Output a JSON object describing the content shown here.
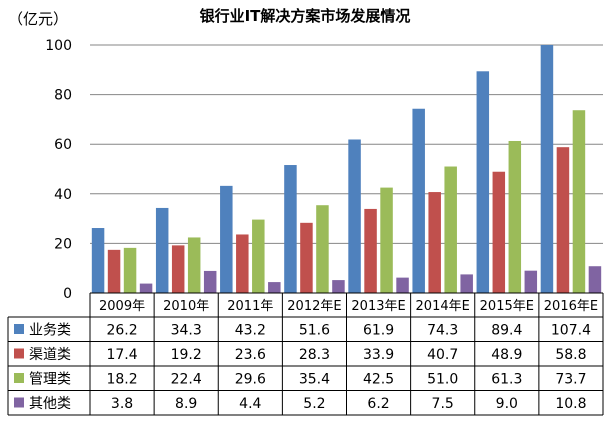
{
  "chart_data": {
    "type": "bar",
    "title": "银行业IT解决方案市场发展情况",
    "unit_label": "（亿元）",
    "categories": [
      "2009年",
      "2010年",
      "2011年",
      "2012年E",
      "2013年E",
      "2014年E",
      "2015年E",
      "2016年E"
    ],
    "ylim": [
      0,
      100
    ],
    "yticks": [
      0,
      20,
      40,
      60,
      80,
      100
    ],
    "grid": true,
    "legend_placement": "data-table-left",
    "series": [
      {
        "name": "业务类",
        "color": "#4F81BD",
        "values": [
          26.2,
          34.3,
          43.2,
          51.6,
          61.9,
          74.3,
          89.4,
          107.4
        ],
        "labels": [
          "26.2",
          "34.3",
          "43.2",
          "51.6",
          "61.9",
          "74.3",
          "89.4",
          "107.4"
        ]
      },
      {
        "name": "渠道类",
        "color": "#C0504D",
        "values": [
          17.4,
          19.2,
          23.6,
          28.3,
          33.9,
          40.7,
          48.9,
          58.8
        ],
        "labels": [
          "17.4",
          "19.2",
          "23.6",
          "28.3",
          "33.9",
          "40.7",
          "48.9",
          "58.8"
        ]
      },
      {
        "name": "管理类",
        "color": "#9BBB59",
        "values": [
          18.2,
          22.4,
          29.6,
          35.4,
          42.5,
          51.0,
          61.3,
          73.7
        ],
        "labels": [
          "18.2",
          "22.4",
          "29.6",
          "35.4",
          "42.5",
          "51.0",
          "61.3",
          "73.7"
        ]
      },
      {
        "name": "其他类",
        "color": "#8064A2",
        "values": [
          3.8,
          8.9,
          4.4,
          5.2,
          6.2,
          7.5,
          9.0,
          10.8
        ],
        "labels": [
          "3.8",
          "8.9",
          "4.4",
          "5.2",
          "6.2",
          "7.5",
          "9.0",
          "10.8"
        ]
      }
    ]
  }
}
